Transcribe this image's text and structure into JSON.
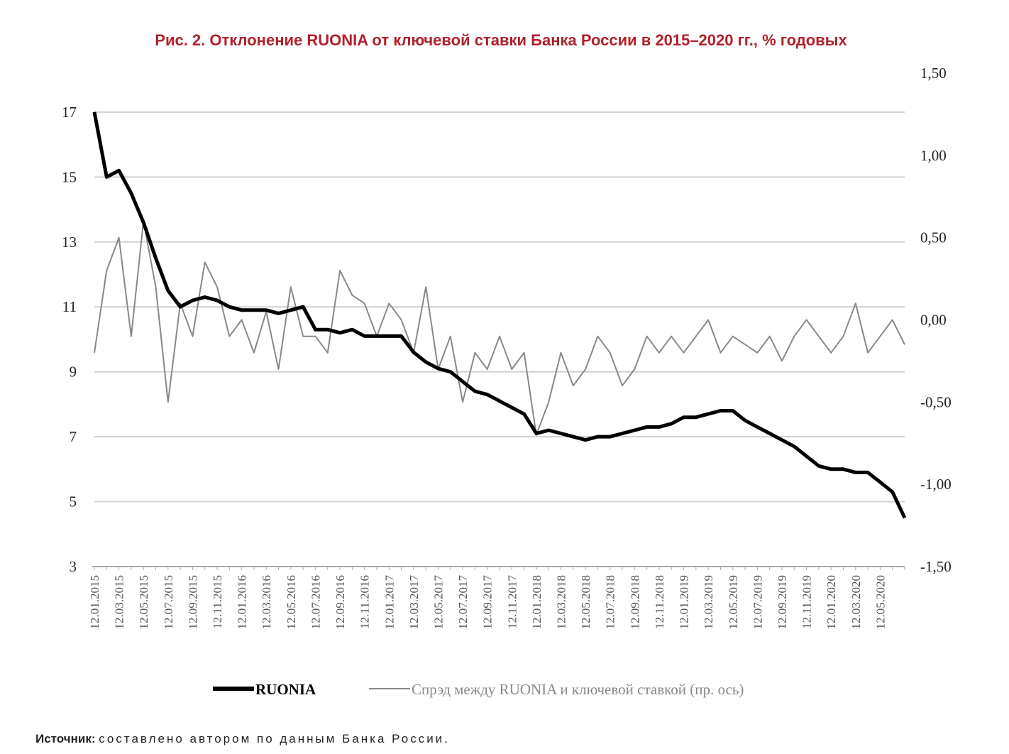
{
  "chart_data": {
    "type": "line",
    "title": "Рис. 2. Отклонение RUONIA от ключевой ставки Банка России в 2015–2020 гг., % годовых",
    "categories": [
      "12.01.2015",
      null,
      "12.03.2015",
      null,
      "12.05.2015",
      null,
      "12.07.2015",
      null,
      "12.09.2015",
      null,
      "12.11.2015",
      null,
      "12.01.2016",
      null,
      "12.03.2016",
      null,
      "12.05.2016",
      null,
      "12.07.2016",
      null,
      "12.09.2016",
      null,
      "12.11.2016",
      null,
      "12.01.2017",
      null,
      "12.03.2017",
      null,
      "12.05.2017",
      null,
      "12.07.2017",
      null,
      "12.09.2017",
      null,
      "12.11.2017",
      null,
      "12.01.2018",
      null,
      "12.03.2018",
      null,
      "12.05.2018",
      null,
      "12.07.2018",
      null,
      "12.09.2018",
      null,
      "12.11.2018",
      null,
      "12.01.2019",
      null,
      "12.03.2019",
      null,
      "12.05.2019",
      null,
      "12.07.2019",
      null,
      "12.09.2019",
      null,
      "12.11.2019",
      null,
      "12.01.2020",
      null,
      "12.03.2020",
      null,
      "12.05.2020",
      null,
      null
    ],
    "series": [
      {
        "name": "RUONIA",
        "color": "#000000",
        "values": [
          17.0,
          15.0,
          15.2,
          14.5,
          13.6,
          12.5,
          11.5,
          11.0,
          11.2,
          11.3,
          11.2,
          11.0,
          10.9,
          10.9,
          10.9,
          10.8,
          10.9,
          11.0,
          10.3,
          10.3,
          10.2,
          10.3,
          10.1,
          10.1,
          10.1,
          10.1,
          9.6,
          9.3,
          9.1,
          9.0,
          8.7,
          8.4,
          8.3,
          8.1,
          7.9,
          7.7,
          7.1,
          7.2,
          7.1,
          7.0,
          6.9,
          7.0,
          7.0,
          7.1,
          7.2,
          7.3,
          7.3,
          7.4,
          7.6,
          7.6,
          7.7,
          7.8,
          7.8,
          7.5,
          7.3,
          7.1,
          6.9,
          6.7,
          6.4,
          6.1,
          6.0,
          6.0,
          5.9,
          5.9,
          5.6,
          5.3,
          4.5
        ]
      },
      {
        "name": "Спрэд между RUONIA и ключевой ставкой (пр. ось)",
        "color": "#888888",
        "axis": "y2",
        "values": [
          -0.2,
          0.3,
          0.5,
          -0.1,
          0.6,
          0.2,
          -0.5,
          0.1,
          -0.1,
          0.35,
          0.2,
          -0.1,
          0.0,
          -0.2,
          0.05,
          -0.3,
          0.2,
          -0.1,
          -0.1,
          -0.2,
          0.3,
          0.15,
          0.1,
          -0.1,
          0.1,
          0.0,
          -0.2,
          0.2,
          -0.3,
          -0.1,
          -0.5,
          -0.2,
          -0.3,
          -0.1,
          -0.3,
          -0.2,
          -0.7,
          -0.5,
          -0.2,
          -0.4,
          -0.3,
          -0.1,
          -0.2,
          -0.4,
          -0.3,
          -0.1,
          -0.2,
          -0.1,
          -0.2,
          -0.1,
          0.0,
          -0.2,
          -0.1,
          -0.15,
          -0.2,
          -0.1,
          -0.25,
          -0.1,
          0.0,
          -0.1,
          -0.2,
          -0.1,
          0.1,
          -0.2,
          -0.1,
          0.0,
          -0.15
        ]
      }
    ],
    "ylim": [
      3,
      18.2
    ],
    "yticks": [
      3,
      5,
      7,
      9,
      11,
      13,
      15,
      17
    ],
    "y2lim": [
      -1.5,
      1.5
    ],
    "y2ticks": [
      {
        "value": -1.5,
        "label": "-1,50"
      },
      {
        "value": -1,
        "label": "-1,00"
      },
      {
        "value": -0.5,
        "label": "-0,50"
      },
      {
        "value": 0,
        "label": "0,00"
      },
      {
        "value": 0.5,
        "label": "0,50"
      },
      {
        "value": 1,
        "label": "1,00"
      },
      {
        "value": 1.5,
        "label": "1,50"
      }
    ],
    "grid": true,
    "legend": "bottom",
    "source_label": "Источник:",
    "source_text": "составлено автором по данным Банка России."
  }
}
